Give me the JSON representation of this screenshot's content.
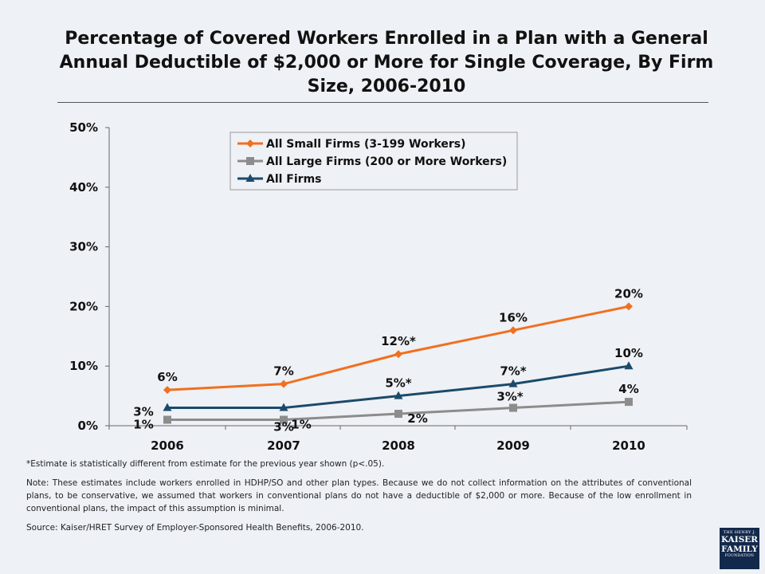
{
  "title": "Percentage of Covered Workers Enrolled in a Plan with a General Annual Deductible of $2,000 or More for Single Coverage, By Firm Size, 2006-2010",
  "colors": {
    "small_firms": "#f07020",
    "large_firms": "#8c8c8c",
    "all_firms": "#1b4a6b"
  },
  "chart_data": {
    "type": "line",
    "categories": [
      "2006",
      "2007",
      "2008",
      "2009",
      "2010"
    ],
    "ylim": [
      0,
      50
    ],
    "yticks": [
      "0%",
      "10%",
      "20%",
      "30%",
      "40%",
      "50%"
    ],
    "legend_position": "top-center",
    "series": [
      {
        "name": "All Small Firms (3-199 Workers)",
        "marker": "diamond",
        "values": [
          6,
          7,
          12,
          16,
          20
        ],
        "labels": [
          "6%",
          "7%",
          "12%*",
          "16%",
          "20%"
        ]
      },
      {
        "name": "All Large Firms (200 or More Workers)",
        "marker": "square",
        "values": [
          1,
          1,
          2,
          3,
          4
        ],
        "labels": [
          "1%",
          "1%",
          "2%",
          "3%*",
          "4%"
        ]
      },
      {
        "name": "All Firms",
        "marker": "triangle",
        "values": [
          3,
          3,
          5,
          7,
          10
        ],
        "labels": [
          "3%",
          "3%",
          "5%*",
          "7%*",
          "10%"
        ]
      }
    ]
  },
  "notes": {
    "asterisk": "*Estimate is statistically different from estimate for the previous year shown (p<.05).",
    "note": "Note: These estimates include workers enrolled in HDHP/SO and other plan types.  Because we do not collect information on the attributes of conventional plans, to be conservative, we assumed that workers in conventional plans do not have a deductible of $2,000 or more.  Because of the low enrollment in conventional plans, the impact of this assumption is minimal.",
    "source": "Source: Kaiser/HRET Survey of Employer-Sponsored Health Benefits, 2006-2010."
  },
  "logo": {
    "line1": "THE HENRY J.",
    "line2": "KAISER",
    "line3": "FAMILY",
    "line4": "FOUNDATION"
  }
}
